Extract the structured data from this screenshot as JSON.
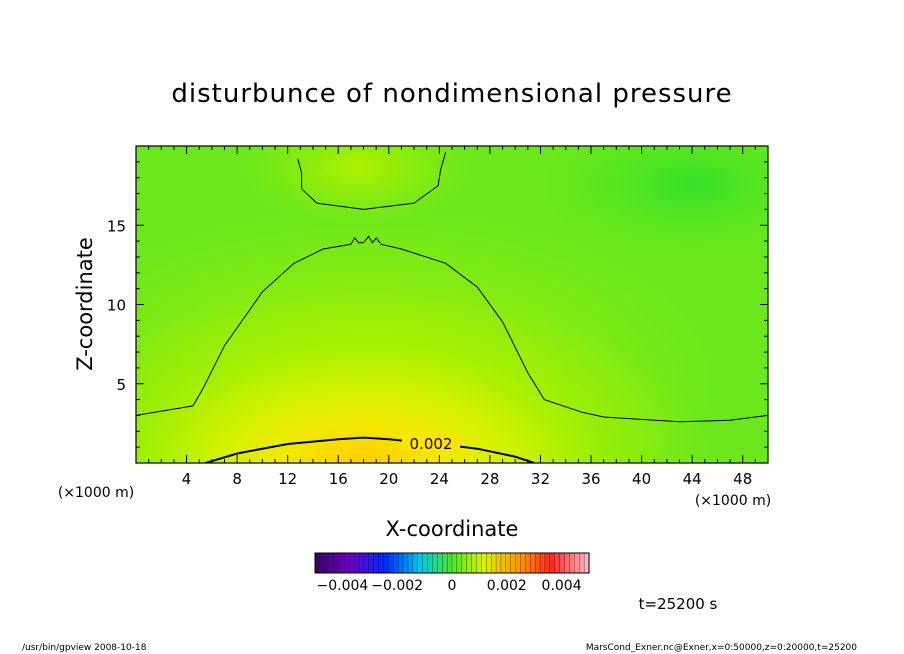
{
  "chart_data": {
    "type": "contour",
    "title": "disturbunce of nondimensional pressure",
    "xlabel": "X-coordinate",
    "ylabel": "Z-coordinate",
    "x_unit": "(×1000 m)",
    "y_unit": "(×1000 m)",
    "xlim": [
      0,
      50
    ],
    "ylim": [
      0,
      20
    ],
    "x_ticks": [
      4,
      8,
      12,
      16,
      20,
      24,
      28,
      32,
      36,
      40,
      44,
      48
    ],
    "y_ticks": [
      5,
      10,
      15
    ],
    "contour_label": "0.002",
    "contours": [
      {
        "level": 0.002,
        "label": "0.002",
        "points": [
          [
            5.5,
            0
          ],
          [
            8,
            0.6
          ],
          [
            12,
            1.2
          ],
          [
            16,
            1.5
          ],
          [
            18,
            1.6
          ],
          [
            20,
            1.5
          ],
          [
            24,
            1.2
          ],
          [
            27,
            0.9
          ],
          [
            30,
            0.4
          ],
          [
            31.5,
            0
          ]
        ]
      },
      {
        "level": 0.001,
        "points": [
          [
            0,
            3.0
          ],
          [
            4.5,
            3.6
          ],
          [
            5.3,
            4.7
          ],
          [
            7,
            7.4
          ],
          [
            10,
            10.8
          ],
          [
            12.5,
            12.6
          ],
          [
            14.8,
            13.5
          ],
          [
            17,
            13.8
          ],
          [
            17.3,
            14.2
          ],
          [
            17.6,
            13.9
          ],
          [
            18,
            13.9
          ],
          [
            18.4,
            14.3
          ],
          [
            18.7,
            13.9
          ],
          [
            19,
            14.2
          ],
          [
            19.4,
            13.8
          ],
          [
            21,
            13.5
          ],
          [
            24.5,
            12.6
          ],
          [
            27,
            11.1
          ],
          [
            29,
            8.9
          ],
          [
            31,
            5.7
          ],
          [
            32.3,
            4.0
          ],
          [
            35.3,
            3.2
          ],
          [
            37,
            2.9
          ],
          [
            39,
            2.8
          ],
          [
            43,
            2.6
          ],
          [
            47,
            2.7
          ],
          [
            50,
            3.0
          ]
        ]
      },
      {
        "level": 0.0005,
        "points": [
          [
            12.8,
            19.2
          ],
          [
            13.1,
            18.3
          ],
          [
            13.1,
            17.3
          ],
          [
            14.3,
            16.4
          ],
          [
            18,
            16.0
          ],
          [
            22,
            16.4
          ],
          [
            23.9,
            17.5
          ],
          [
            24.1,
            18.5
          ],
          [
            24.5,
            19.6
          ]
        ]
      }
    ],
    "colorbar": {
      "ticks": [
        "−0.004",
        "−0.002",
        "0",
        "0.002",
        "0.004"
      ],
      "range": [
        -0.005,
        0.005
      ]
    },
    "time_label": "t=25200 s",
    "footer_left": "/usr/bin/gpview   2008-10-18",
    "footer_right": "MarsCond_Exner.nc@Exner,x=0:50000,z=0:20000,t=25200"
  }
}
